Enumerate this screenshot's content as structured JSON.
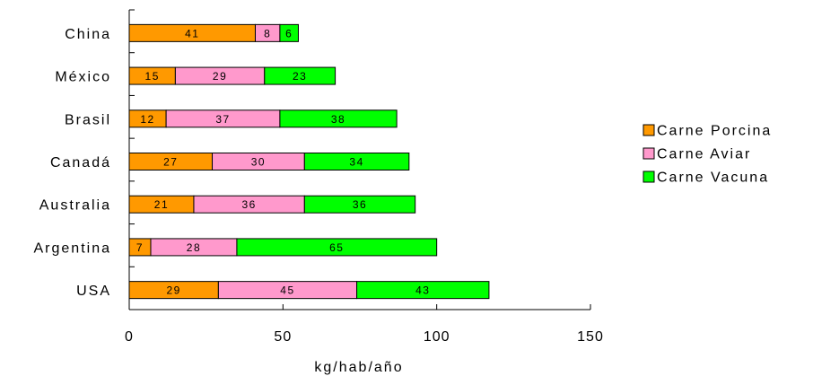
{
  "chart_data": {
    "type": "bar",
    "orientation": "horizontal",
    "stacked": true,
    "categories": [
      "China",
      "México",
      "Brasil",
      "Canadá",
      "Australia",
      "Argentina",
      "USA"
    ],
    "series": [
      {
        "name": "Carne Porcina",
        "color": "#ff9900",
        "values": [
          41,
          15,
          12,
          27,
          21,
          7,
          29
        ]
      },
      {
        "name": "Carne Aviar",
        "color": "#ff99cc",
        "values": [
          8,
          29,
          37,
          30,
          36,
          28,
          45
        ]
      },
      {
        "name": "Carne Vacuna",
        "color": "#00ff00",
        "values": [
          6,
          23,
          38,
          34,
          36,
          65,
          43
        ]
      }
    ],
    "xlabel": "kg/hab/año",
    "ylabel": "",
    "xlim": [
      0,
      150
    ],
    "xticks": [
      "0",
      "50",
      "100",
      "150"
    ],
    "grid": false,
    "data_labels": true,
    "legend_position": "right"
  }
}
